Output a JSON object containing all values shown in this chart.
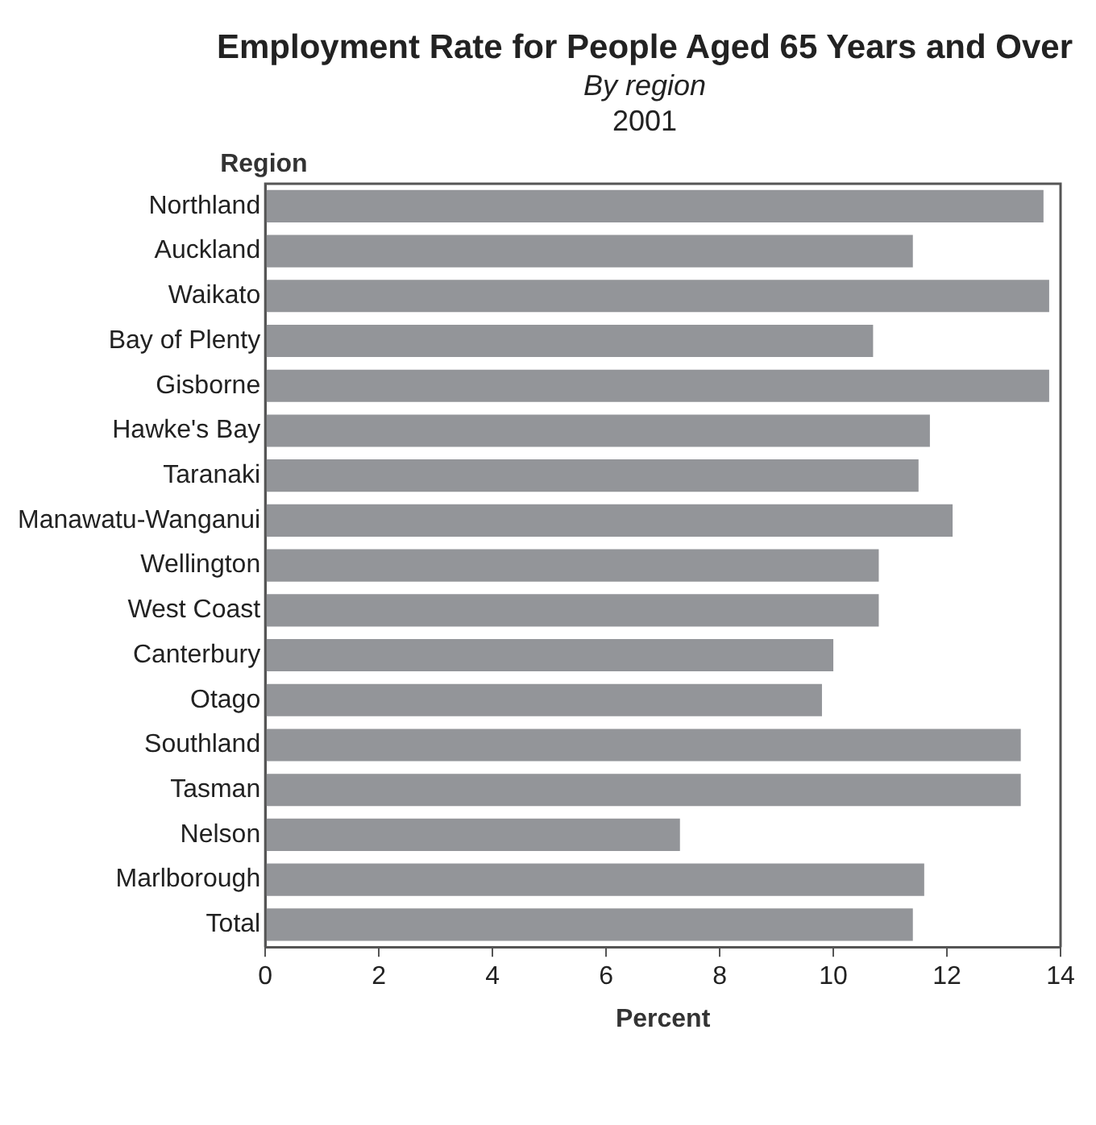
{
  "chart_data": {
    "type": "bar",
    "orientation": "horizontal",
    "title": "Employment Rate for People Aged 65 Years and Over",
    "subtitle": "By region\n2001",
    "ylabel": "Region",
    "xlabel": "Percent",
    "categories": [
      "Northland",
      "Auckland",
      "Waikato",
      "Bay of Plenty",
      "Gisborne",
      "Hawke's Bay",
      "Taranaki",
      "Manawatu-Wanganui",
      "Wellington",
      "West Coast",
      "Canterbury",
      "Otago",
      "Southland",
      "Tasman",
      "Nelson",
      "Marlborough",
      "Total"
    ],
    "values": [
      13.7,
      11.4,
      13.8,
      10.7,
      13.8,
      11.7,
      11.5,
      12.1,
      10.8,
      10.8,
      10.0,
      9.8,
      13.3,
      13.3,
      7.3,
      11.6,
      11.4
    ],
    "color": "#939599",
    "xlim": [
      0,
      14
    ],
    "xticks": [
      0,
      2,
      4,
      6,
      8,
      10,
      12,
      14
    ],
    "grid": false,
    "legend": false
  }
}
